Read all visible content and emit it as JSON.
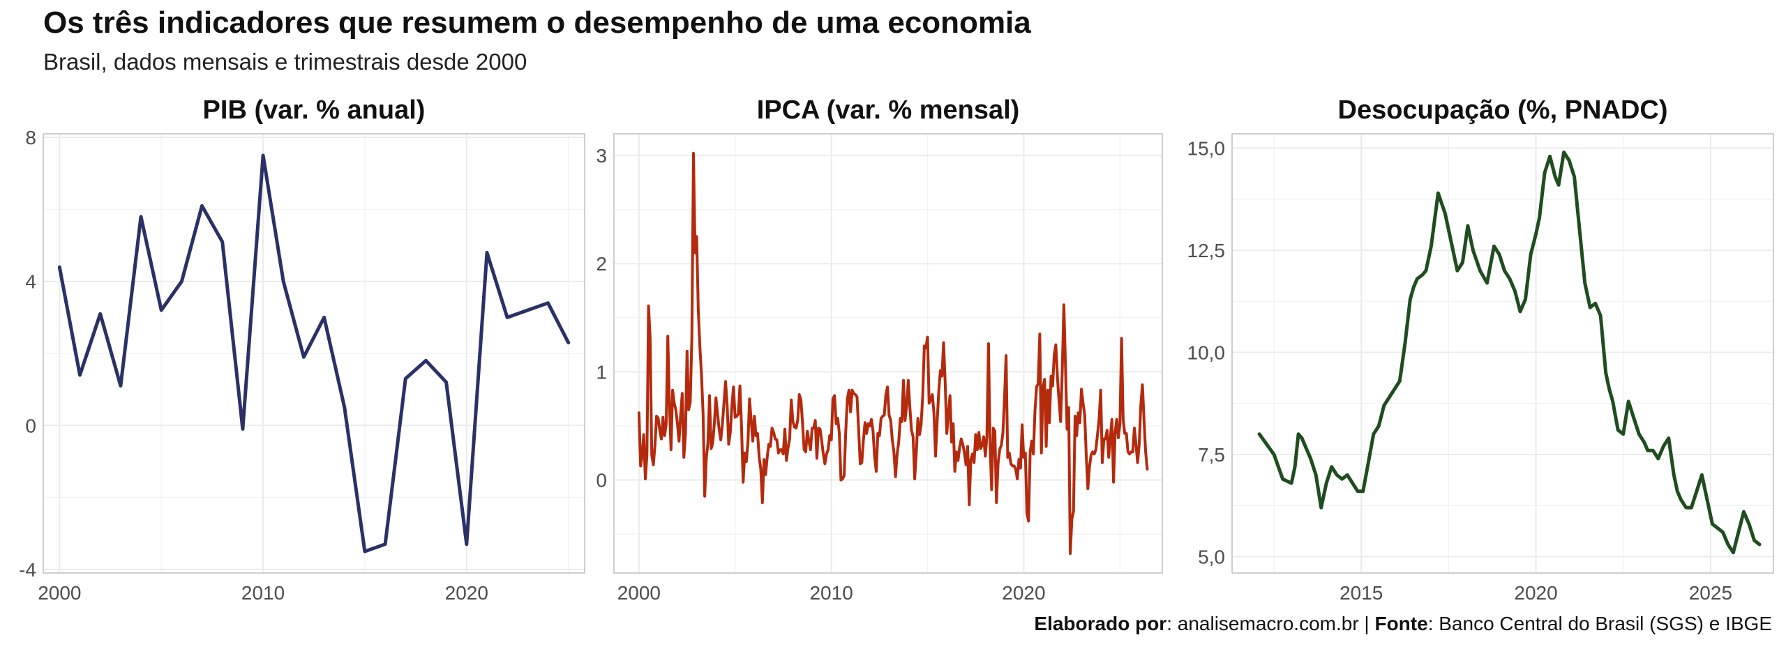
{
  "title": "Os três indicadores que resumem o desempenho de uma economia",
  "subtitle": "Brasil, dados mensais e trimestrais desde 2000",
  "caption": {
    "elab_label": "Elaborado por",
    "elab_value": ": analisemacro.com.br | ",
    "source_label": "Fonte",
    "source_value": ": Banco Central do Brasil (SGS) e IBGE"
  },
  "colors": {
    "pib": "#2b3166",
    "ipca": "#b52a0d",
    "desocupacao": "#1f4d1f",
    "grid": "#ebebeb",
    "panel_border": "#bfbfbf"
  },
  "chart_data": [
    {
      "type": "line",
      "title": "PIB (var. % anual)",
      "xlabel": "",
      "ylabel": "",
      "xlim": [
        1999.2,
        2025.8
      ],
      "ylim": [
        -4.1,
        8.1
      ],
      "x_ticks": [
        2000,
        2010,
        2020
      ],
      "x_tick_labels": [
        "2000",
        "2010",
        "2020"
      ],
      "y_ticks": [
        -4,
        0,
        4,
        8
      ],
      "y_tick_labels": [
        "-4",
        "0",
        "4",
        "8"
      ],
      "grid": true,
      "series": [
        {
          "x": [
            2000,
            2001,
            2002,
            2003,
            2004,
            2005,
            2006,
            2007,
            2008,
            2009,
            2010,
            2011,
            2012,
            2013,
            2014,
            2015,
            2016,
            2017,
            2018,
            2019,
            2020,
            2021,
            2022,
            2023,
            2024,
            2025
          ],
          "y": [
            4.4,
            1.4,
            3.1,
            1.1,
            5.8,
            3.2,
            4.0,
            6.1,
            5.1,
            -0.1,
            7.5,
            4.0,
            1.9,
            3.0,
            0.5,
            -3.5,
            -3.3,
            1.3,
            1.8,
            1.2,
            -3.3,
            4.8,
            3.0,
            3.2,
            3.4,
            2.3
          ]
        }
      ]
    },
    {
      "type": "line",
      "title": "IPCA (var. % mensal)",
      "xlabel": "",
      "ylabel": "",
      "xlim": [
        1998.7,
        2027.2
      ],
      "ylim": [
        -0.86,
        3.2
      ],
      "x_ticks": [
        2000,
        2010,
        2020
      ],
      "x_tick_labels": [
        "2000",
        "2010",
        "2020"
      ],
      "y_ticks": [
        0,
        1,
        2,
        3
      ],
      "y_tick_labels": [
        "0",
        "1",
        "2",
        "3"
      ],
      "grid": true,
      "series": [
        {
          "x_start": 2000.0,
          "x_step": 0.08333,
          "y": [
            0.62,
            0.13,
            0.22,
            0.42,
            0.01,
            0.23,
            1.61,
            1.31,
            0.23,
            0.14,
            0.32,
            0.59,
            0.57,
            0.46,
            0.38,
            0.58,
            0.41,
            0.52,
            1.33,
            0.7,
            0.28,
            0.83,
            0.71,
            0.65,
            0.52,
            0.36,
            0.6,
            0.8,
            0.21,
            0.42,
            1.19,
            0.65,
            0.72,
            1.31,
            3.02,
            2.1,
            2.25,
            1.57,
            1.23,
            0.97,
            0.61,
            -0.15,
            0.2,
            0.34,
            0.78,
            0.29,
            0.34,
            0.52,
            0.76,
            0.61,
            0.47,
            0.37,
            0.51,
            0.71,
            0.91,
            0.69,
            0.33,
            0.44,
            0.69,
            0.86,
            0.58,
            0.59,
            0.61,
            0.87,
            0.49,
            -0.02,
            0.25,
            0.17,
            0.35,
            0.75,
            0.55,
            0.36,
            0.59,
            0.41,
            0.43,
            0.21,
            0.1,
            -0.21,
            0.19,
            0.05,
            0.21,
            0.33,
            0.31,
            0.48,
            0.44,
            0.38,
            0.37,
            0.25,
            0.28,
            0.28,
            0.24,
            0.47,
            0.18,
            0.3,
            0.38,
            0.74,
            0.54,
            0.49,
            0.48,
            0.55,
            0.79,
            0.74,
            0.53,
            0.28,
            0.26,
            0.45,
            0.36,
            0.28,
            0.48,
            0.48,
            0.55,
            0.2,
            0.48,
            0.47,
            0.36,
            0.24,
            0.15,
            0.24,
            0.28,
            0.41,
            0.37,
            0.75,
            0.78,
            0.52,
            0.57,
            0.43,
            0.0,
            0.01,
            0.04,
            0.45,
            0.75,
            0.83,
            0.63,
            0.83,
            0.8,
            0.79,
            0.77,
            0.47,
            0.15,
            0.16,
            0.37,
            0.53,
            0.43,
            0.52,
            0.5,
            0.56,
            0.45,
            0.21,
            0.08,
            0.43,
            0.41,
            0.57,
            0.59,
            0.6,
            0.79,
            0.86,
            0.6,
            0.55,
            0.37,
            0.26,
            0.03,
            0.24,
            0.35,
            0.57,
            0.54,
            0.92,
            0.55,
            0.69,
            0.92,
            0.67,
            0.46,
            0.4,
            0.01,
            0.25,
            0.57,
            0.42,
            0.51,
            0.78,
            1.24,
            1.22,
            1.32,
            0.71,
            0.74,
            0.79,
            0.62,
            0.22,
            0.54,
            0.82,
            1.01,
            0.96,
            1.27,
            0.9,
            0.43,
            0.61,
            0.78,
            0.35,
            0.52,
            0.08,
            0.26,
            0.18,
            0.3,
            0.38,
            0.33,
            0.25,
            0.14,
            0.31,
            -0.23,
            0.19,
            0.24,
            0.16,
            0.42,
            0.28,
            0.44,
            0.29,
            0.32,
            0.4,
            0.22,
            0.4,
            1.26,
            0.33,
            -0.09,
            0.48,
            0.45,
            -0.21,
            0.15,
            0.28,
            0.32,
            0.43,
            0.75,
            1.15,
            0.21,
            0.25,
            0.15,
            0.13,
            0.13,
            0.1,
            0.01,
            0.19,
            0.11,
            0.51,
            0.21,
            0.25,
            -0.31,
            -0.38,
            0.26,
            0.36,
            0.24,
            0.64,
            0.86,
            0.89,
            1.35,
            0.25,
            0.86,
            0.93,
            0.31,
            0.83,
            0.53,
            0.96,
            0.87,
            1.16,
            1.25,
            0.95,
            0.73,
            0.54,
            1.01,
            1.62,
            1.06,
            0.47,
            0.67,
            -0.68,
            -0.36,
            -0.29,
            0.59,
            0.41,
            0.62,
            0.53,
            0.84,
            0.71,
            0.61,
            0.23,
            -0.08,
            0.12,
            0.23,
            0.26,
            0.24,
            0.28,
            0.42,
            0.56,
            0.83,
            0.16,
            0.38,
            0.38,
            0.46,
            0.21,
            0.39,
            0.56,
            -0.02,
            0.44,
            0.56,
            0.39,
            0.52,
            1.31,
            0.56,
            0.43,
            0.43,
            0.26,
            0.24,
            0.26,
            0.26,
            0.48,
            0.33,
            0.16,
            0.33,
            0.69,
            0.88,
            0.56,
            0.26,
            0.1
          ]
        }
      ]
    },
    {
      "type": "line",
      "title": "Desocupação (%, PNADC)",
      "xlabel": "",
      "ylabel": "",
      "xlim": [
        2011.3,
        2026.8
      ],
      "ylim": [
        4.6,
        15.35
      ],
      "x_ticks": [
        2015,
        2020,
        2025
      ],
      "x_tick_labels": [
        "2015",
        "2020",
        "2025"
      ],
      "y_ticks": [
        5,
        7.5,
        10,
        12.5,
        15
      ],
      "y_tick_labels": [
        "5,0",
        "7,5",
        "10,0",
        "12,5",
        "15,0"
      ],
      "grid": true,
      "series": [
        {
          "x": [
            2012.08,
            2012.25,
            2012.5,
            2012.75,
            2013.0,
            2013.1,
            2013.2,
            2013.3,
            2013.45,
            2013.55,
            2013.7,
            2013.85,
            2014.0,
            2014.15,
            2014.3,
            2014.45,
            2014.6,
            2014.75,
            2014.9,
            2015.05,
            2015.2,
            2015.35,
            2015.5,
            2015.65,
            2015.8,
            2015.95,
            2016.1,
            2016.25,
            2016.4,
            2016.5,
            2016.6,
            2016.75,
            2016.85,
            2017.0,
            2017.2,
            2017.4,
            2017.6,
            2017.75,
            2017.9,
            2018.05,
            2018.2,
            2018.4,
            2018.6,
            2018.8,
            2018.95,
            2019.1,
            2019.25,
            2019.4,
            2019.55,
            2019.7,
            2019.85,
            2020.0,
            2020.1,
            2020.25,
            2020.4,
            2020.55,
            2020.65,
            2020.8,
            2020.95,
            2021.1,
            2021.25,
            2021.4,
            2021.55,
            2021.7,
            2021.85,
            2022.0,
            2022.1,
            2022.2,
            2022.35,
            2022.5,
            2022.65,
            2022.8,
            2022.95,
            2023.1,
            2023.2,
            2023.35,
            2023.5,
            2023.65,
            2023.8,
            2023.95,
            2024.05,
            2024.15,
            2024.3,
            2024.45,
            2024.6,
            2024.75,
            2024.9,
            2025.05,
            2025.2,
            2025.35,
            2025.5,
            2025.65,
            2025.8,
            2025.95,
            2026.1,
            2026.25,
            2026.4
          ],
          "y": [
            8.0,
            7.8,
            7.5,
            6.9,
            6.8,
            7.2,
            8.0,
            7.9,
            7.6,
            7.4,
            7.0,
            6.2,
            6.8,
            7.2,
            7.0,
            6.9,
            7.0,
            6.8,
            6.6,
            6.6,
            7.3,
            8.0,
            8.2,
            8.7,
            8.9,
            9.1,
            9.3,
            10.2,
            11.3,
            11.6,
            11.8,
            11.9,
            12.0,
            12.6,
            13.9,
            13.4,
            12.6,
            12.0,
            12.2,
            13.1,
            12.5,
            12.0,
            11.7,
            12.6,
            12.4,
            12.0,
            11.8,
            11.5,
            11.0,
            11.3,
            12.4,
            12.9,
            13.3,
            14.4,
            14.8,
            14.3,
            14.1,
            14.9,
            14.7,
            14.3,
            13.0,
            11.7,
            11.1,
            11.2,
            10.9,
            9.5,
            9.1,
            8.8,
            8.1,
            8.0,
            8.8,
            8.4,
            8.0,
            7.8,
            7.6,
            7.6,
            7.4,
            7.7,
            7.9,
            7.0,
            6.6,
            6.4,
            6.2,
            6.2,
            6.6,
            7.0,
            6.4,
            5.8,
            5.7,
            5.6,
            5.3,
            5.1,
            5.6,
            6.1,
            5.8,
            5.4,
            5.3
          ]
        }
      ]
    }
  ]
}
